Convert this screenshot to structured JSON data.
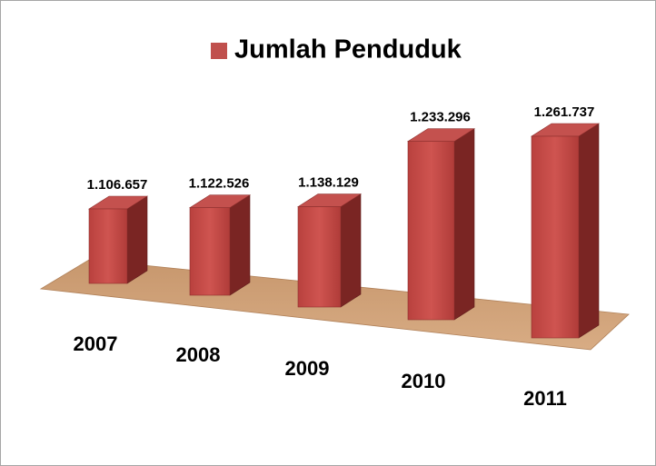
{
  "chart_data": {
    "type": "bar",
    "categories": [
      "2007",
      "2008",
      "2009",
      "2010",
      "2011"
    ],
    "series": [
      {
        "name": "Jumlah Penduduk",
        "color": "#c0504d",
        "values": [
          1106657,
          1122526,
          1138129,
          1233296,
          1261737
        ],
        "value_labels": [
          "1.106.657",
          "1.122.526",
          "1.138.129",
          "1.233.296",
          "1.261.737"
        ]
      }
    ]
  }
}
